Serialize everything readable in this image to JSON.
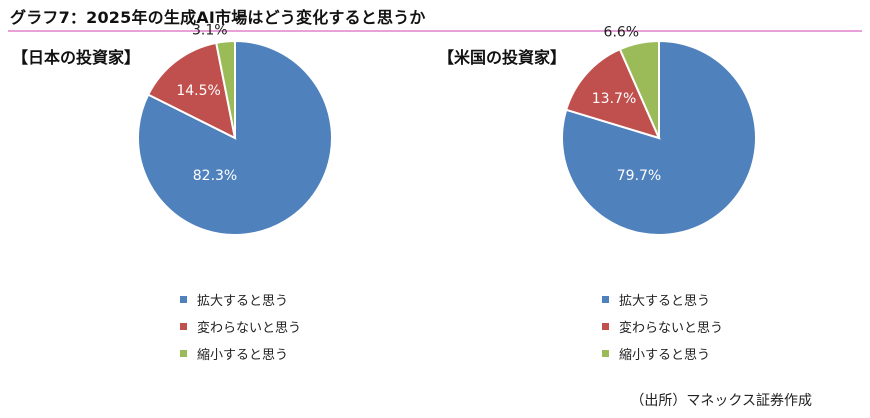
{
  "title": "グラフ7：2025年の生成AI市場はどう変化すると思うか",
  "source": "（出所）マネックス証券作成",
  "colors": {
    "expand": "#4f81bd",
    "nochange": "#c0504d",
    "shrink": "#9bbb59"
  },
  "chart_data": [
    {
      "type": "pie",
      "title": "【日本の投資家】",
      "categories": [
        "拡大すると思う",
        "変わらないと思う",
        "縮小すると思う"
      ],
      "values": [
        82.3,
        14.5,
        3.1
      ],
      "labels": [
        "82.3%",
        "14.5%",
        "3.1%"
      ],
      "legend": "bottom"
    },
    {
      "type": "pie",
      "title": "【米国の投資家】",
      "categories": [
        "拡大すると思う",
        "変わらないと思う",
        "縮小すると思う"
      ],
      "values": [
        79.7,
        13.7,
        6.6
      ],
      "labels": [
        "79.7%",
        "13.7%",
        "6.6%"
      ],
      "legend": "bottom"
    }
  ]
}
